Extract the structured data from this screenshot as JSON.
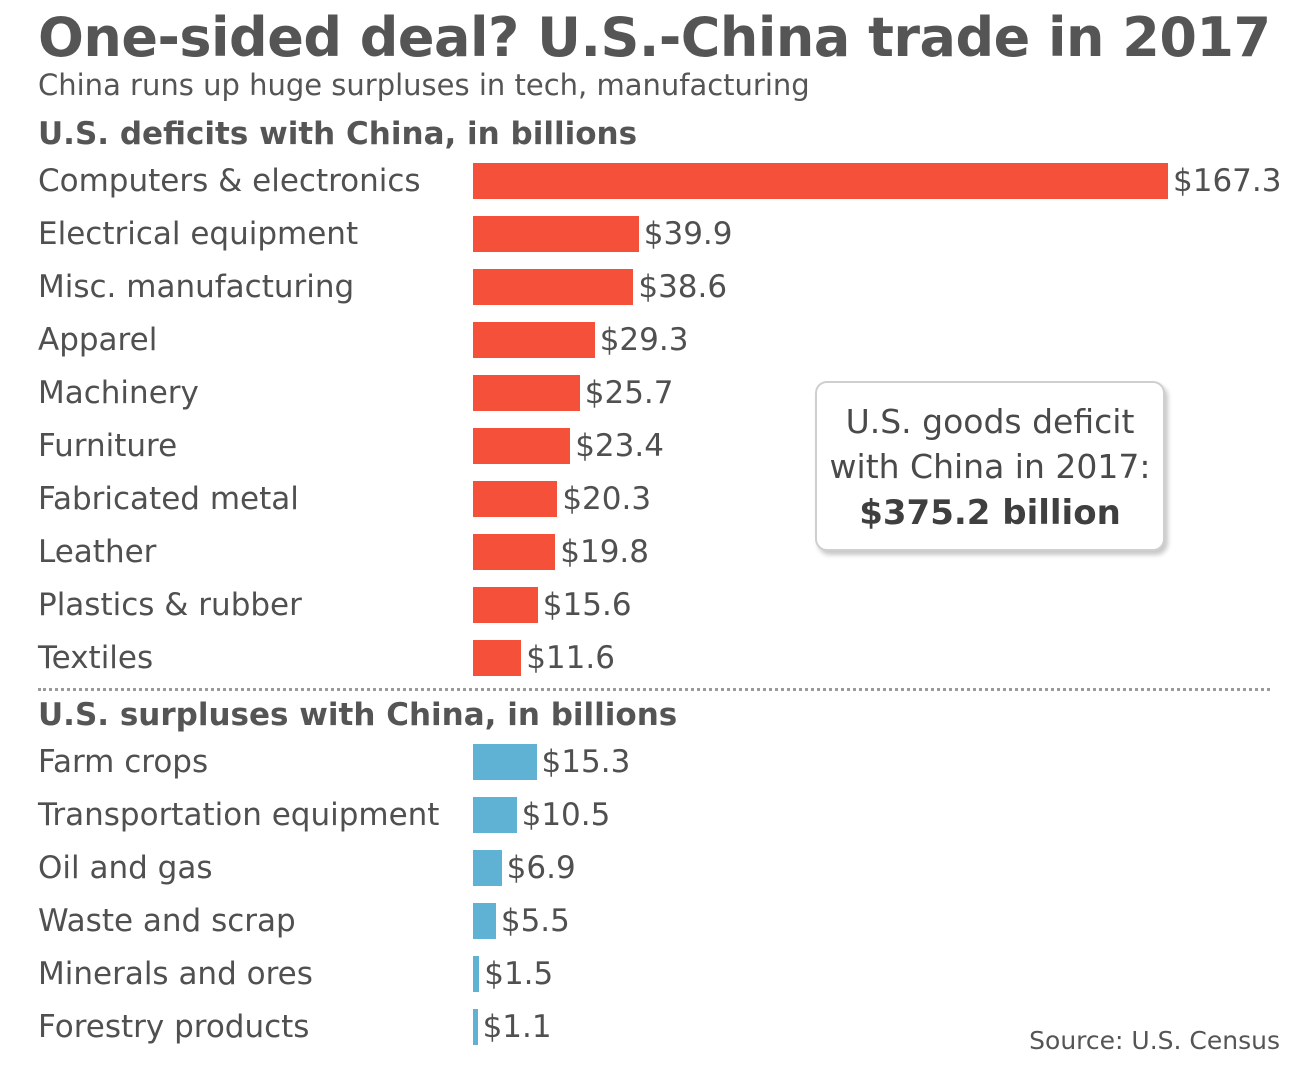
{
  "chart_data": {
    "type": "bar",
    "orientation": "horizontal",
    "title": "One-sided deal? U.S.-China trade in 2017",
    "subtitle": "China runs up huge surpluses in tech, manufacturing",
    "unit_prefix": "$",
    "deficits": {
      "label": "U.S. deficits with China, in billions",
      "color": "#f5503a",
      "categories": [
        "Computers & electronics",
        "Electrical equipment",
        "Misc. manufacturing",
        "Apparel",
        "Machinery",
        "Furniture",
        "Fabricated metal",
        "Leather",
        "Plastics & rubber",
        "Textiles"
      ],
      "values": [
        167.3,
        39.9,
        38.6,
        29.3,
        25.7,
        23.4,
        20.3,
        19.8,
        15.6,
        11.6
      ]
    },
    "surpluses": {
      "label": "U.S. surpluses with China, in billions",
      "color": "#5fb2d3",
      "categories": [
        "Farm crops",
        "Transportation equipment",
        "Oil and gas",
        "Waste and scrap",
        "Minerals and ores",
        "Forestry products"
      ],
      "values": [
        15.3,
        10.5,
        6.9,
        5.5,
        1.5,
        1.1
      ]
    },
    "xlim": [
      0,
      167.3
    ],
    "grid": false
  },
  "callout": {
    "line1": "U.S. goods deficit",
    "line2": "with China in 2017:",
    "total": "$375.2 billion"
  },
  "source": "Source: U.S. Census"
}
